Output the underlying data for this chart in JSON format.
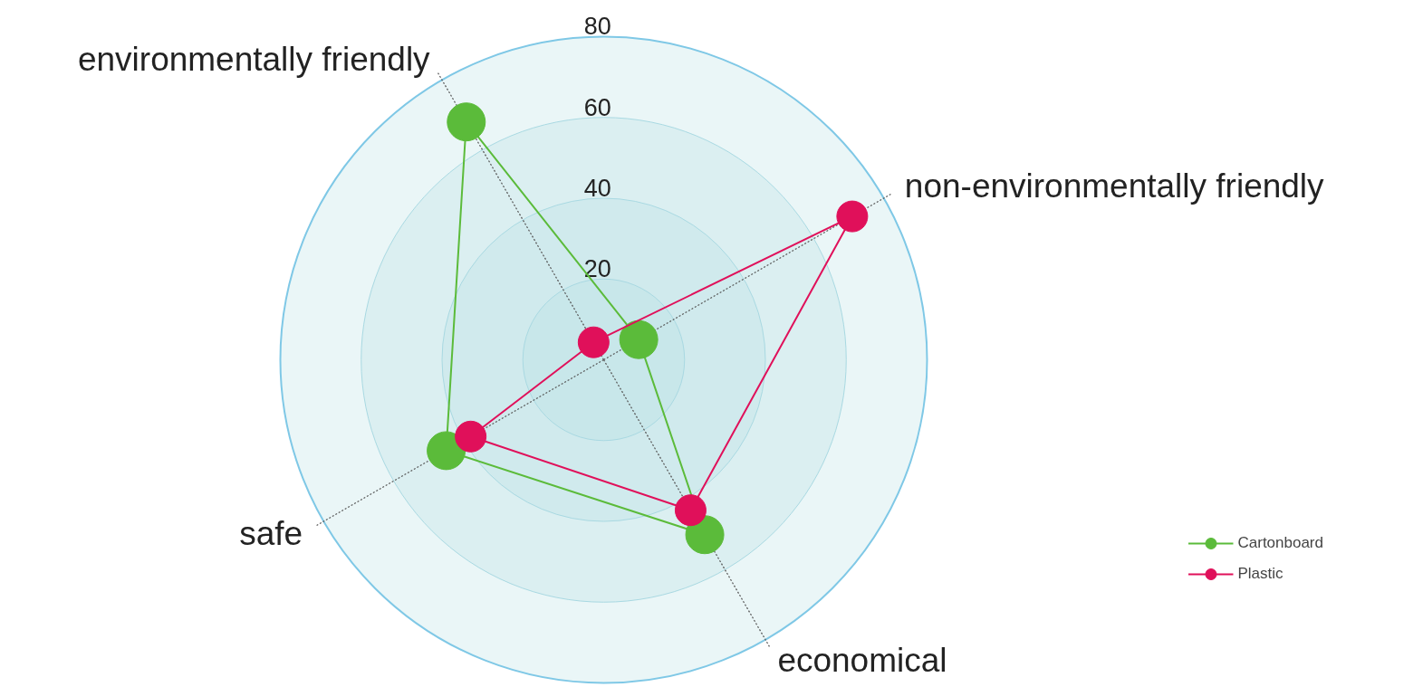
{
  "chart_data": {
    "type": "radar",
    "categories": [
      "environmentally friendly",
      "non-environmentally friendly",
      "economical",
      "safe"
    ],
    "series": [
      {
        "name": "Cartonboard",
        "color": "#5bbb3a",
        "values": [
          68,
          10,
          50,
          45
        ]
      },
      {
        "name": "Plastic",
        "color": "#e0105a",
        "values": [
          5,
          71,
          43,
          38
        ]
      }
    ],
    "ylim": [
      0,
      80
    ],
    "yticks": [
      20,
      40,
      60,
      80
    ],
    "grid": true,
    "legend": "bottom right",
    "marker": "circle",
    "line_style": "solid"
  }
}
